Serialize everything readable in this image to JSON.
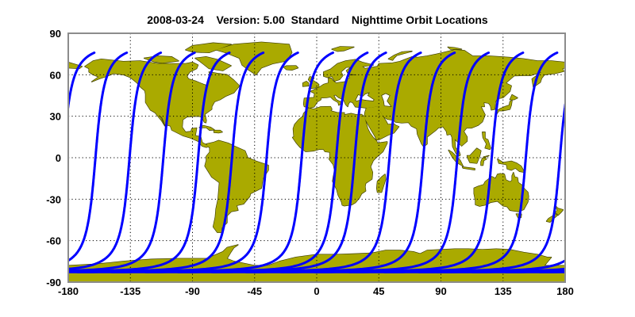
{
  "title": "2008-03-24    Version: 5.00  Standard    Nighttime Orbit Locations",
  "chart_data": {
    "type": "map",
    "projection": "equirectangular",
    "xlim": [
      -180,
      180
    ],
    "ylim": [
      -90,
      90
    ],
    "x_ticks": [
      "-180",
      "-135",
      "-90",
      "-45",
      "0",
      "45",
      "90",
      "135",
      "180"
    ],
    "y_ticks": [
      "90",
      "60",
      "30",
      "0",
      "-30",
      "-60",
      "-90"
    ],
    "grid": true,
    "grid_style": "dotted",
    "orbit_tracks": {
      "equator_crossing_lon": [
        -160.3,
        -135.6,
        -111.1,
        -85.9,
        -61.4,
        -36.3,
        -10.9,
        14.1,
        27.5,
        52.7,
        77.2,
        101.9,
        126.8,
        151.5,
        176.2
      ],
      "max_lat": 76,
      "min_lat": -82
    }
  },
  "colors": {
    "land": "#AAAA00",
    "coastline": "#3a3a00",
    "orbit_track": "#0000FF",
    "frame": "#8c8c8c",
    "background": "#FFFFFF"
  }
}
